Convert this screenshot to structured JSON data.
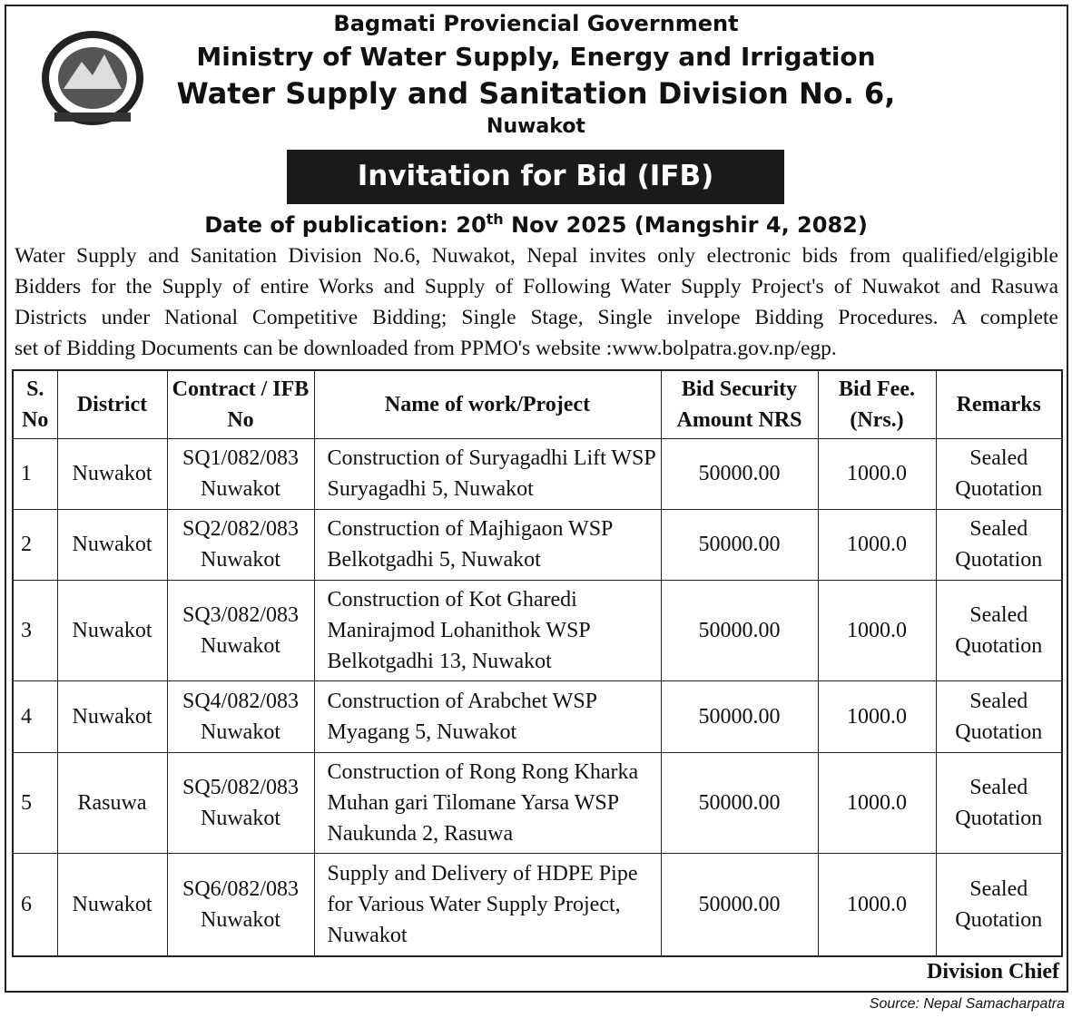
{
  "header": {
    "government": "Bagmati Proviencial Government",
    "ministry": "Ministry of Water Supply, Energy and Irrigation",
    "division": "Water Supply and Sanitation Division No. 6,",
    "location": "Nuwakot",
    "banner": "Invitation for Bid (IFB)",
    "date_prefix": "Date of publication: 20",
    "date_sup": "th",
    "date_suffix": " Nov 2025 (Mangshir 4, 2082)"
  },
  "body": {
    "lines": [
      "Water Supply and Sanitation Division No.6, Nuwakot, Nepal invites only electronic bids from qualified/elgigible",
      "Bidders for the Supply of entire Works and Supply of Following Water Supply Project's of Nuwakot and Rasuwa",
      "Districts under National Competitive Bidding; Single Stage, Single invelope Bidding Procedures. A complete",
      "set of Bidding Documents can be downloaded from PPMO's website :www.bolpatra.gov.np/egp."
    ]
  },
  "table": {
    "headers": [
      "S. No",
      "District",
      "Contract / IFB No",
      "Name of work/Project",
      "Bid Security Amount NRS",
      "Bid Fee. (Nrs.)",
      "Remarks"
    ],
    "rows": [
      [
        "1",
        "Nuwakot",
        "SQ1/082/083 Nuwakot",
        "Construction of Suryagadhi Lift WSP Suryagadhi 5, Nuwakot",
        "50000.00",
        "1000.0",
        "Sealed Quotation"
      ],
      [
        "2",
        "Nuwakot",
        "SQ2/082/083 Nuwakot",
        "Construction of Majhigaon WSP Belkotgadhi 5, Nuwakot",
        "50000.00",
        "1000.0",
        "Sealed Quotation"
      ],
      [
        "3",
        "Nuwakot",
        "SQ3/082/083 Nuwakot",
        "Construction of Kot Gharedi Manirajmod Lohanithok WSP Belkotgadhi 13, Nuwakot",
        "50000.00",
        "1000.0",
        "Sealed Quotation"
      ],
      [
        "4",
        "Nuwakot",
        "SQ4/082/083 Nuwakot",
        "Construction of Arabchet WSP Myagang 5, Nuwakot",
        "50000.00",
        "1000.0",
        "Sealed Quotation"
      ],
      [
        "5",
        "Rasuwa",
        "SQ5/082/083 Nuwakot",
        "Construction of Rong Rong Kharka Muhan gari Tilomane Yarsa WSP Naukunda 2, Rasuwa",
        "50000.00",
        "1000.0",
        "Sealed Quotation"
      ],
      [
        "6",
        "Nuwakot",
        "SQ6/082/083 Nuwakot",
        "Supply and Delivery of HDPE Pipe for Various Water Supply Project, Nuwakot",
        "50000.00",
        "1000.0",
        "Sealed Quotation"
      ]
    ]
  },
  "footer": {
    "signatory": "Division Chief",
    "source": "Source: Nepal Samacharpatra"
  }
}
